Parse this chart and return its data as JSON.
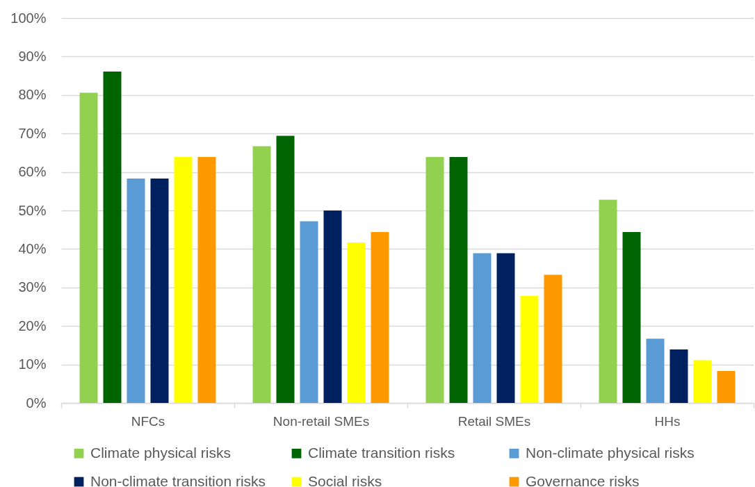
{
  "chart_data": {
    "type": "bar",
    "categories": [
      "NFCs",
      "Non-retail SMEs",
      "Retail SMEs",
      "HHs"
    ],
    "series": [
      {
        "name": "Climate physical risks",
        "color": "#92d050",
        "values": [
          80.6,
          66.7,
          63.9,
          52.8
        ]
      },
      {
        "name": "Climate transition risks",
        "color": "#006400",
        "values": [
          86.1,
          69.4,
          63.9,
          44.4
        ]
      },
      {
        "name": "Non-climate physical risks",
        "color": "#5b9bd5",
        "values": [
          58.3,
          47.2,
          38.9,
          16.7
        ]
      },
      {
        "name": "Non-climate transition risks",
        "color": "#002060",
        "values": [
          58.3,
          50.0,
          38.9,
          13.9
        ]
      },
      {
        "name": "Social risks",
        "color": "#ffff00",
        "values": [
          63.9,
          41.7,
          27.8,
          11.1
        ]
      },
      {
        "name": "Governance risks",
        "color": "#ff9900",
        "values": [
          63.9,
          44.4,
          33.3,
          8.3
        ]
      }
    ],
    "ylim": [
      0,
      100
    ],
    "yticks": [
      {
        "value": 0,
        "label": "0%"
      },
      {
        "value": 10,
        "label": "10%"
      },
      {
        "value": 20,
        "label": "20%"
      },
      {
        "value": 30,
        "label": "30%"
      },
      {
        "value": 40,
        "label": "40%"
      },
      {
        "value": 50,
        "label": "50%"
      },
      {
        "value": 60,
        "label": "60%"
      },
      {
        "value": 70,
        "label": "70%"
      },
      {
        "value": 80,
        "label": "80%"
      },
      {
        "value": 90,
        "label": "90%"
      },
      {
        "value": 100,
        "label": "100%"
      }
    ],
    "grid": "y",
    "legend": "bottom"
  }
}
